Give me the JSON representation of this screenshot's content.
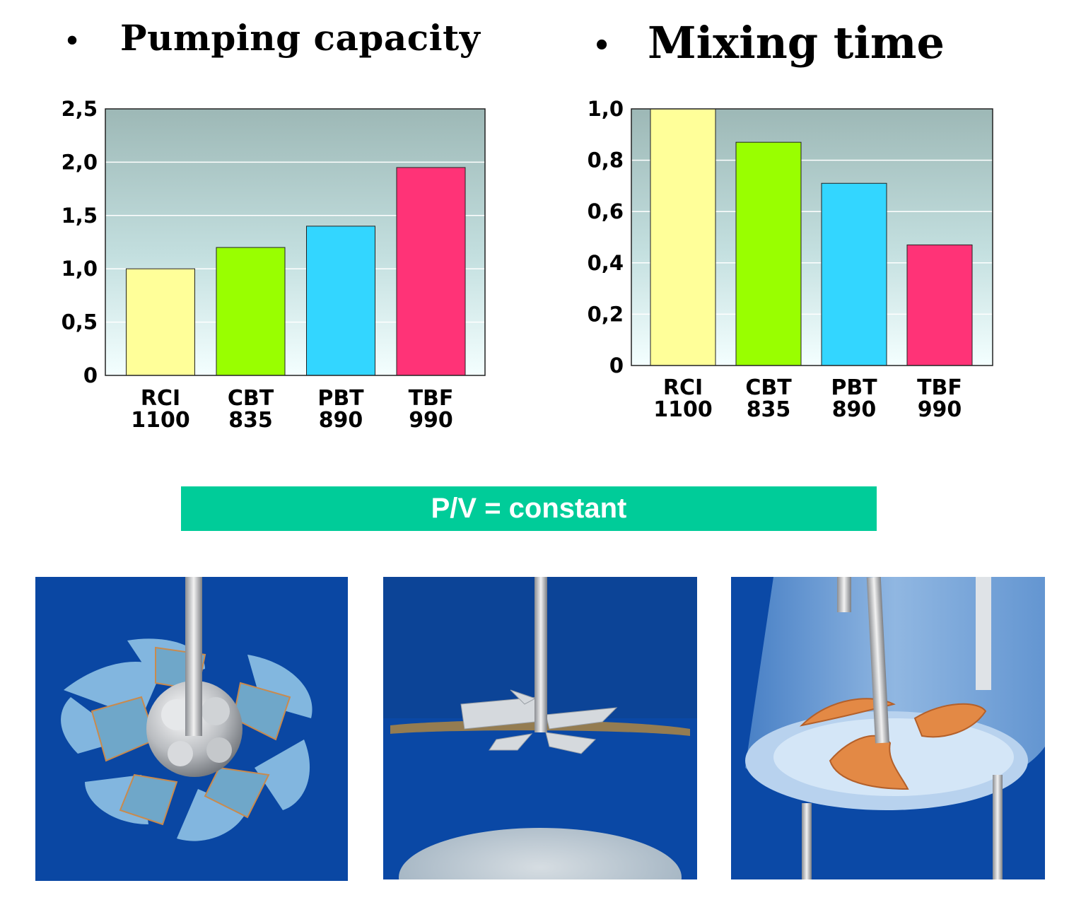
{
  "headings": {
    "left": "Pumping capacity",
    "right": "Mixing time",
    "bullet": "•"
  },
  "banner": {
    "text": "P/V = constant"
  },
  "chart_data": [
    {
      "type": "bar",
      "title": "Pumping capacity",
      "categories": [
        "RCI 1100",
        "CBT 835",
        "PBT 890",
        "TBF 990"
      ],
      "category_lines": [
        [
          "RCI",
          "1100"
        ],
        [
          "CBT",
          "835"
        ],
        [
          "PBT",
          "890"
        ],
        [
          "TBF",
          "990"
        ]
      ],
      "values": [
        1.0,
        1.2,
        1.4,
        1.95
      ],
      "ylim": [
        0,
        2.5
      ],
      "yticks": [
        0,
        0.5,
        1.0,
        1.5,
        2.0,
        2.5
      ],
      "ytick_labels": [
        "0",
        "0,5",
        "1,0",
        "1,5",
        "2,0",
        "2,5"
      ],
      "grid": true,
      "colors": [
        "#ffff99",
        "#99ff00",
        "#33d6ff",
        "#ff3377"
      ]
    },
    {
      "type": "bar",
      "title": "Mixing time",
      "categories": [
        "RCI 1100",
        "CBT 835",
        "PBT 890",
        "TBF 990"
      ],
      "category_lines": [
        [
          "RCI",
          "1100"
        ],
        [
          "CBT",
          "835"
        ],
        [
          "PBT",
          "890"
        ],
        [
          "TBF",
          "990"
        ]
      ],
      "values": [
        1.0,
        0.87,
        0.71,
        0.47
      ],
      "ylim": [
        0,
        1.0
      ],
      "yticks": [
        0,
        0.2,
        0.4,
        0.6,
        0.8,
        1.0
      ],
      "ytick_labels": [
        "0",
        "0,2",
        "0,4",
        "0,6",
        "0,8",
        "1,0"
      ],
      "grid": true,
      "colors": [
        "#ffff99",
        "#99ff00",
        "#33d6ff",
        "#ff3377"
      ]
    }
  ],
  "images": [
    {
      "icon": "rci-impeller-image"
    },
    {
      "icon": "cbt-impeller-image"
    },
    {
      "icon": "tbf-impeller-image"
    }
  ]
}
